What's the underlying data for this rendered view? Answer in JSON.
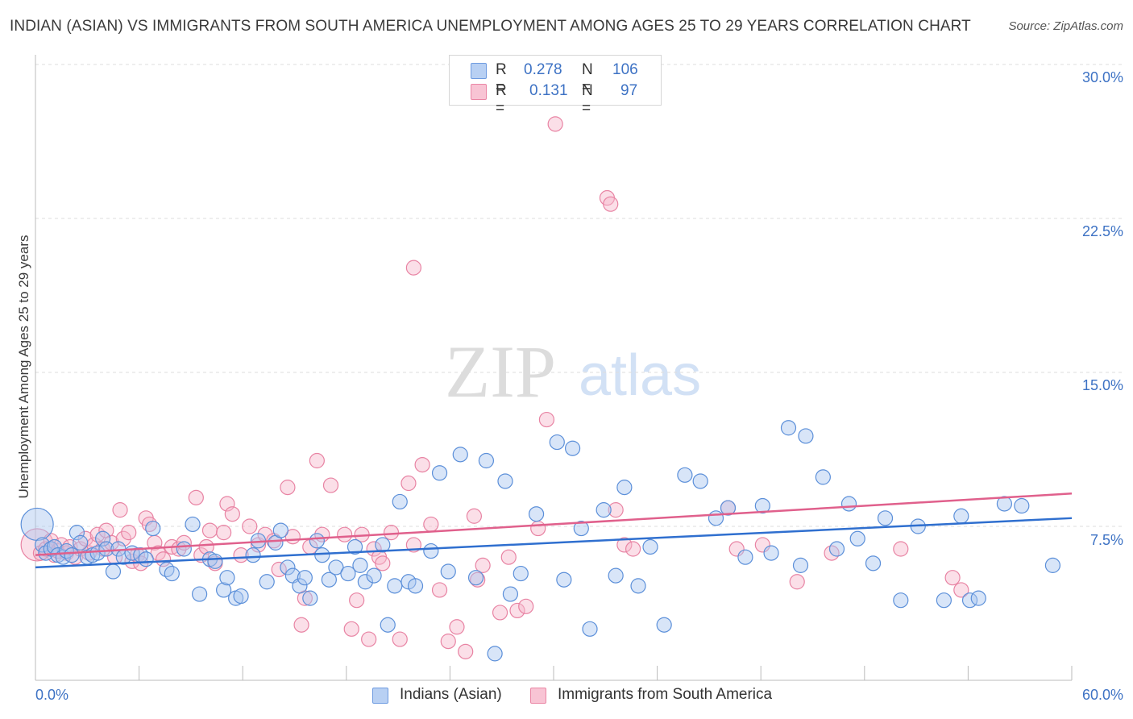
{
  "title": "INDIAN (ASIAN) VS IMMIGRANTS FROM SOUTH AMERICA UNEMPLOYMENT AMONG AGES 25 TO 29 YEARS CORRELATION CHART",
  "source": "Source: ZipAtlas.com",
  "watermark": {
    "zip": "ZIP",
    "atlas": "atlas"
  },
  "legend": {
    "rows": [
      {
        "r_label": "R =",
        "r_value": "0.278",
        "n_label": "N =",
        "n_value": "106"
      },
      {
        "r_label": "R =",
        "r_value": "0.131",
        "n_label": "N =",
        "n_value": "97"
      }
    ]
  },
  "colors": {
    "blue_fill": "#a9c6f0",
    "blue_stroke": "#5b8fd9",
    "blue_line": "#2f6fcf",
    "pink_fill": "#f6b9cc",
    "pink_stroke": "#e883a3",
    "pink_line": "#e0608c",
    "axis_text": "#3d72c4",
    "grid": "#dddddd"
  },
  "chart_data": {
    "type": "scatter",
    "title": "INDIAN (ASIAN) VS IMMIGRANTS FROM SOUTH AMERICA UNEMPLOYMENT AMONG AGES 25 TO 29 YEARS CORRELATION CHART",
    "xlabel": "",
    "ylabel": "Unemployment Among Ages 25 to 29 years",
    "xlim": [
      0,
      60
    ],
    "ylim": [
      0,
      30
    ],
    "x_tick_labels": [
      "0.0%",
      "60.0%"
    ],
    "y_ticks": [
      7.5,
      15.0,
      22.5,
      30.0
    ],
    "y_tick_labels": [
      "7.5%",
      "15.0%",
      "22.5%",
      "30.0%"
    ],
    "grid": "horizontal dashed",
    "legend_position": "bottom",
    "series": [
      {
        "name": "Indians (Asian)",
        "r": 0.278,
        "n": 106,
        "trend": [
          [
            0,
            5.5
          ],
          [
            60,
            7.9
          ]
        ],
        "points": [
          [
            0.1,
            7.6
          ],
          [
            0.4,
            6.6
          ],
          [
            0.6,
            6.2
          ],
          [
            0.9,
            6.4
          ],
          [
            1.1,
            6.5
          ],
          [
            1.3,
            6.1
          ],
          [
            1.6,
            6.0
          ],
          [
            1.8,
            6.3
          ],
          [
            2.1,
            6.1
          ],
          [
            2.4,
            7.2
          ],
          [
            2.6,
            6.7
          ],
          [
            3.0,
            6.0
          ],
          [
            3.3,
            6.1
          ],
          [
            3.6,
            6.2
          ],
          [
            3.9,
            6.9
          ],
          [
            4.1,
            6.4
          ],
          [
            4.5,
            5.3
          ],
          [
            4.8,
            6.4
          ],
          [
            5.1,
            6.0
          ],
          [
            5.6,
            6.2
          ],
          [
            6.1,
            6.1
          ],
          [
            6.4,
            5.9
          ],
          [
            6.8,
            7.4
          ],
          [
            7.6,
            5.4
          ],
          [
            7.9,
            5.2
          ],
          [
            8.6,
            6.4
          ],
          [
            9.1,
            7.6
          ],
          [
            9.5,
            4.2
          ],
          [
            10.1,
            5.9
          ],
          [
            10.4,
            5.8
          ],
          [
            10.9,
            4.4
          ],
          [
            11.1,
            5.0
          ],
          [
            11.6,
            4.0
          ],
          [
            11.9,
            4.1
          ],
          [
            12.6,
            6.1
          ],
          [
            12.9,
            6.8
          ],
          [
            13.4,
            4.8
          ],
          [
            13.9,
            6.7
          ],
          [
            14.2,
            7.3
          ],
          [
            14.6,
            5.5
          ],
          [
            14.9,
            5.1
          ],
          [
            15.3,
            4.6
          ],
          [
            15.6,
            5.0
          ],
          [
            15.9,
            4.0
          ],
          [
            16.3,
            6.8
          ],
          [
            16.6,
            6.1
          ],
          [
            17.0,
            4.9
          ],
          [
            17.4,
            5.5
          ],
          [
            18.1,
            5.2
          ],
          [
            18.5,
            6.5
          ],
          [
            18.8,
            5.6
          ],
          [
            19.1,
            4.8
          ],
          [
            19.6,
            5.1
          ],
          [
            20.1,
            6.6
          ],
          [
            20.4,
            2.7
          ],
          [
            20.8,
            4.6
          ],
          [
            21.1,
            8.7
          ],
          [
            21.6,
            4.8
          ],
          [
            22.0,
            4.6
          ],
          [
            22.9,
            6.3
          ],
          [
            23.4,
            10.1
          ],
          [
            23.9,
            5.3
          ],
          [
            24.6,
            11.0
          ],
          [
            25.5,
            5.0
          ],
          [
            26.1,
            10.7
          ],
          [
            26.6,
            1.3
          ],
          [
            27.2,
            9.7
          ],
          [
            27.5,
            4.2
          ],
          [
            28.1,
            5.2
          ],
          [
            29.0,
            8.1
          ],
          [
            30.2,
            11.6
          ],
          [
            30.6,
            4.9
          ],
          [
            31.1,
            11.3
          ],
          [
            31.6,
            7.4
          ],
          [
            32.1,
            2.5
          ],
          [
            32.9,
            8.3
          ],
          [
            33.6,
            5.1
          ],
          [
            34.1,
            9.4
          ],
          [
            34.9,
            4.6
          ],
          [
            35.6,
            6.5
          ],
          [
            36.4,
            2.7
          ],
          [
            37.6,
            10.0
          ],
          [
            38.5,
            9.7
          ],
          [
            39.4,
            7.9
          ],
          [
            40.1,
            8.4
          ],
          [
            41.1,
            6.0
          ],
          [
            42.1,
            8.5
          ],
          [
            42.6,
            6.2
          ],
          [
            43.6,
            12.3
          ],
          [
            44.3,
            5.6
          ],
          [
            44.6,
            11.9
          ],
          [
            45.6,
            9.9
          ],
          [
            46.4,
            6.4
          ],
          [
            47.1,
            8.6
          ],
          [
            47.6,
            6.9
          ],
          [
            48.5,
            5.7
          ],
          [
            49.2,
            7.9
          ],
          [
            50.1,
            3.9
          ],
          [
            51.1,
            7.5
          ],
          [
            52.6,
            3.9
          ],
          [
            53.6,
            8.0
          ],
          [
            54.1,
            3.9
          ],
          [
            54.6,
            4.0
          ],
          [
            56.1,
            8.6
          ],
          [
            57.1,
            8.5
          ],
          [
            58.9,
            5.6
          ]
        ]
      },
      {
        "name": "Immigrants from South America",
        "r": 0.131,
        "n": 97,
        "trend": [
          [
            0,
            6.1
          ],
          [
            60,
            9.1
          ]
        ],
        "points": [
          [
            0.1,
            6.6
          ],
          [
            0.3,
            6.2
          ],
          [
            0.6,
            6.4
          ],
          [
            0.9,
            6.8
          ],
          [
            1.1,
            6.1
          ],
          [
            1.3,
            6.3
          ],
          [
            1.5,
            6.6
          ],
          [
            1.8,
            6.2
          ],
          [
            2.0,
            6.5
          ],
          [
            2.3,
            6.0
          ],
          [
            2.6,
            6.4
          ],
          [
            2.9,
            6.9
          ],
          [
            3.1,
            6.2
          ],
          [
            3.4,
            6.6
          ],
          [
            3.6,
            7.1
          ],
          [
            3.9,
            6.4
          ],
          [
            4.1,
            7.3
          ],
          [
            4.4,
            6.7
          ],
          [
            4.6,
            6.0
          ],
          [
            4.9,
            8.3
          ],
          [
            5.1,
            6.9
          ],
          [
            5.4,
            7.2
          ],
          [
            5.6,
            5.8
          ],
          [
            5.9,
            6.1
          ],
          [
            6.1,
            5.7
          ],
          [
            6.4,
            7.9
          ],
          [
            6.6,
            7.6
          ],
          [
            6.9,
            6.7
          ],
          [
            7.1,
            6.2
          ],
          [
            7.4,
            5.9
          ],
          [
            7.9,
            6.5
          ],
          [
            8.3,
            6.4
          ],
          [
            8.6,
            6.7
          ],
          [
            9.3,
            8.9
          ],
          [
            9.6,
            6.1
          ],
          [
            9.9,
            6.5
          ],
          [
            10.1,
            7.3
          ],
          [
            10.4,
            5.7
          ],
          [
            10.9,
            7.2
          ],
          [
            11.1,
            8.6
          ],
          [
            11.4,
            8.1
          ],
          [
            11.9,
            6.1
          ],
          [
            12.4,
            7.5
          ],
          [
            12.9,
            6.6
          ],
          [
            13.3,
            7.1
          ],
          [
            13.8,
            6.8
          ],
          [
            14.1,
            5.4
          ],
          [
            14.6,
            9.4
          ],
          [
            14.9,
            7.0
          ],
          [
            15.4,
            2.7
          ],
          [
            15.6,
            4.0
          ],
          [
            15.9,
            6.5
          ],
          [
            16.3,
            10.7
          ],
          [
            16.6,
            7.1
          ],
          [
            17.1,
            9.5
          ],
          [
            17.9,
            7.1
          ],
          [
            18.3,
            2.5
          ],
          [
            18.6,
            3.9
          ],
          [
            18.9,
            7.1
          ],
          [
            19.3,
            2.0
          ],
          [
            19.6,
            6.4
          ],
          [
            19.9,
            6.0
          ],
          [
            20.1,
            5.7
          ],
          [
            20.6,
            7.2
          ],
          [
            21.1,
            2.0
          ],
          [
            21.6,
            9.6
          ],
          [
            21.9,
            6.6
          ],
          [
            22.4,
            10.5
          ],
          [
            22.9,
            7.6
          ],
          [
            23.4,
            4.4
          ],
          [
            23.9,
            1.9
          ],
          [
            24.4,
            2.6
          ],
          [
            24.9,
            1.4
          ],
          [
            25.4,
            8.0
          ],
          [
            25.6,
            4.9
          ],
          [
            25.9,
            5.6
          ],
          [
            26.9,
            3.3
          ],
          [
            27.4,
            6.0
          ],
          [
            27.9,
            3.4
          ],
          [
            28.4,
            3.6
          ],
          [
            29.1,
            7.4
          ],
          [
            29.6,
            12.7
          ],
          [
            30.1,
            27.1
          ],
          [
            33.1,
            23.5
          ],
          [
            33.3,
            23.2
          ],
          [
            33.6,
            8.3
          ],
          [
            34.1,
            6.6
          ],
          [
            34.6,
            6.4
          ],
          [
            21.9,
            20.1
          ],
          [
            40.1,
            8.4
          ],
          [
            40.6,
            6.4
          ],
          [
            42.1,
            6.6
          ],
          [
            44.1,
            4.8
          ],
          [
            46.1,
            6.2
          ],
          [
            50.1,
            6.4
          ],
          [
            53.1,
            5.0
          ],
          [
            53.6,
            4.4
          ]
        ]
      }
    ]
  }
}
